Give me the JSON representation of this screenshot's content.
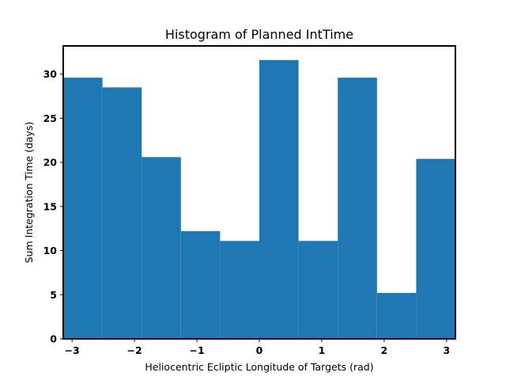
{
  "chart_data": {
    "type": "bar",
    "title": "Histogram of Planned IntTime",
    "xlabel": "Heliocentric Ecliptic Longitude of Targets (rad)",
    "ylabel": "Sum Integration Time (days)",
    "xlim": [
      -3.1416,
      3.1416
    ],
    "ylim": [
      0,
      33.2
    ],
    "bin_edges": [
      -3.1416,
      -2.5133,
      -1.885,
      -1.2566,
      -0.6283,
      0.0,
      0.6283,
      1.2566,
      1.885,
      2.5133,
      3.1416
    ],
    "values": [
      29.6,
      28.5,
      20.6,
      12.2,
      11.1,
      31.6,
      11.1,
      29.6,
      5.2,
      20.4
    ],
    "xticks": [
      -3,
      -2,
      -1,
      0,
      1,
      2,
      3
    ],
    "xtick_labels": [
      "−3",
      "−2",
      "−1",
      "0",
      "1",
      "2",
      "3"
    ],
    "yticks": [
      0,
      5,
      10,
      15,
      20,
      25,
      30
    ],
    "ytick_labels": [
      "0",
      "5",
      "10",
      "15",
      "20",
      "25",
      "30"
    ],
    "bar_color": "#1f77b4",
    "grid": false,
    "legend": false
  }
}
